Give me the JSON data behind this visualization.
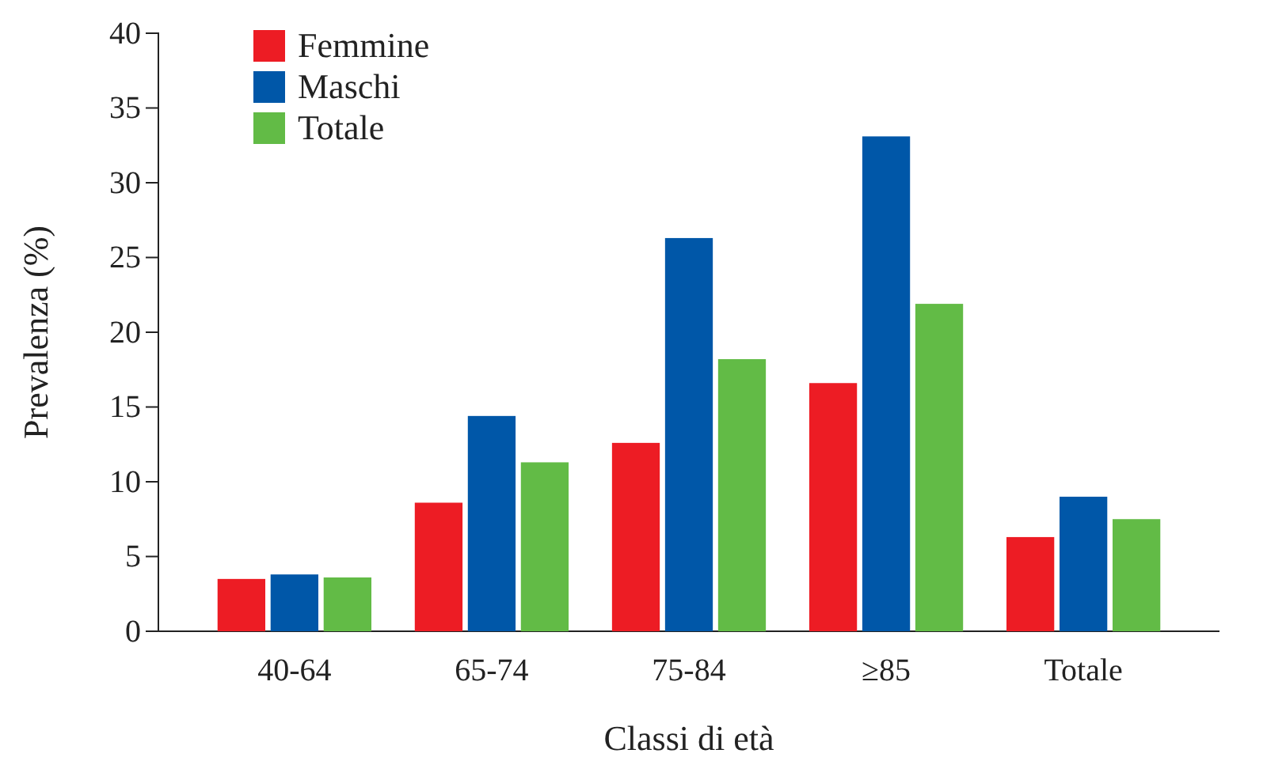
{
  "chart_data": {
    "type": "bar",
    "xlabel": "Classi di età",
    "ylabel": "Prevalenza (%)",
    "categories": [
      "40-64",
      "65-74",
      "75-84",
      "≥85",
      "Totale"
    ],
    "series": [
      {
        "name": "Femmine",
        "color": "#ed1c24",
        "values": [
          3.5,
          8.6,
          12.6,
          16.6,
          6.3
        ]
      },
      {
        "name": "Maschi",
        "color": "#0057a8",
        "values": [
          3.8,
          14.4,
          26.3,
          33.1,
          9.0
        ]
      },
      {
        "name": "Totale",
        "color": "#62bb46",
        "values": [
          3.6,
          11.3,
          18.2,
          21.9,
          7.5
        ]
      }
    ],
    "ylim": [
      0,
      40
    ],
    "yticks": [
      0,
      5,
      10,
      15,
      20,
      25,
      30,
      35,
      40
    ],
    "grid": false,
    "legend": "top left"
  }
}
